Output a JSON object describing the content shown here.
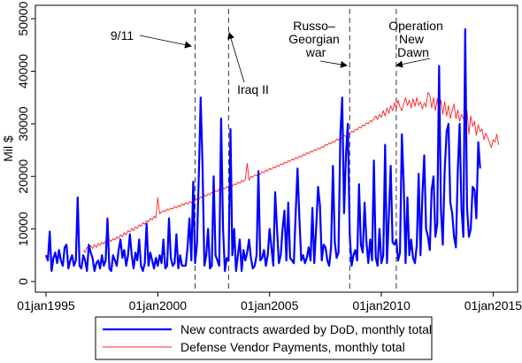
{
  "chart_data": {
    "type": "line",
    "title": "",
    "xlabel": "",
    "ylabel": "Mil $",
    "xlim": [
      "1995-01",
      "2015-01"
    ],
    "ylim": [
      0,
      50000
    ],
    "x_ticks": [
      "01jan1995",
      "01jan2000",
      "01jan2005",
      "01jan2010",
      "01jan2015"
    ],
    "y_ticks": [
      "0",
      "10000",
      "20000",
      "30000",
      "40000",
      "50000"
    ],
    "grid": false,
    "legend_position": "bottom",
    "colors": {
      "dod": "#0000ff",
      "payments": "#ff2020",
      "frame": "#000000"
    },
    "events": [
      {
        "date": "2001-09",
        "label": "9/11"
      },
      {
        "date": "2003-03",
        "label": "Iraq II"
      },
      {
        "date": "2008-08",
        "label": "Russo– Georgian war"
      },
      {
        "date": "2010-09",
        "label": "Operation New Dawn"
      }
    ],
    "series": [
      {
        "name": "New contracts awarded by DoD, monthly total",
        "start": "1995-01",
        "values": [
          5000,
          4000,
          9500,
          2000,
          4500,
          5500,
          3500,
          6000,
          4000,
          3000,
          6500,
          7000,
          2500,
          4000,
          5000,
          3000,
          4000,
          16000,
          3000,
          2500,
          5000,
          4000,
          2000,
          7000,
          5500,
          4500,
          2000,
          3500,
          4000,
          2500,
          5000,
          3000,
          4000,
          12000,
          2500,
          2000,
          5000,
          4000,
          3000,
          6000,
          8000,
          4500,
          6000,
          3000,
          5000,
          9000,
          5000,
          2500,
          5500,
          4000,
          8000,
          3000,
          2000,
          3500,
          11000,
          3000,
          5500,
          4000,
          2500,
          4500,
          3000,
          5000,
          3500,
          8000,
          2500,
          3000,
          12000,
          4500,
          3000,
          3500,
          9000,
          2500,
          5000,
          3000,
          3000,
          3000,
          6500,
          12000,
          4000,
          19000,
          3500,
          7000,
          20000,
          35000,
          22000,
          3000,
          5000,
          10000,
          2500,
          3000,
          20000,
          5000,
          4000,
          3000,
          31000,
          10000,
          2000,
          4500,
          4000,
          29000,
          5000,
          10000,
          2000,
          5000,
          8000,
          2000,
          6000,
          4000,
          5500,
          8000,
          4500,
          2500,
          3000,
          5000,
          21000,
          4000,
          4500,
          6000,
          3000,
          5000,
          10000,
          6500,
          3000,
          17000,
          10000,
          3500,
          5000,
          10000,
          13500,
          4000,
          15000,
          4500,
          4000,
          3500,
          13000,
          21500,
          12000,
          4000,
          5000,
          3500,
          4500,
          6500,
          4000,
          14000,
          3500,
          10000,
          18000,
          14500,
          4000,
          7000,
          6500,
          4000,
          3000,
          6500,
          22000,
          7500,
          4500,
          5500,
          28000,
          35000,
          13000,
          24000,
          30000,
          9000,
          3000,
          5000,
          6000,
          4000,
          18500,
          7000,
          5500,
          15000,
          7500,
          3500,
          8000,
          4000,
          23000,
          4500,
          3000,
          10000,
          3500,
          5000,
          26000,
          3500,
          12500,
          22000,
          7500,
          7000,
          8000,
          4000,
          5500,
          28000,
          18500,
          3500,
          16000,
          5000,
          8000,
          4500,
          3500,
          7000,
          20500,
          5000,
          16500,
          24000,
          10000,
          8500,
          6000,
          17500,
          20000,
          8500,
          11000,
          41000,
          13500,
          7000,
          21000,
          28500,
          30000,
          15000,
          13000,
          8500,
          6500,
          21000,
          30000,
          14000,
          8500,
          48000,
          14000,
          8500,
          10000,
          18000,
          17500,
          12000,
          26500,
          21500
        ]
      },
      {
        "name": "Defense Vendor Payments, monthly total",
        "start": "1996-09",
        "values": [
          6000,
          5500,
          6500,
          6200,
          6800,
          6300,
          7000,
          6500,
          7200,
          6900,
          7500,
          7100,
          7800,
          7400,
          8000,
          7600,
          8200,
          7900,
          8500,
          8200,
          8900,
          8500,
          9300,
          8900,
          9700,
          9400,
          10100,
          9700,
          10400,
          10100,
          10800,
          10500,
          11200,
          10900,
          11600,
          11300,
          12000,
          11700,
          12400,
          12100,
          16000,
          12900,
          13200,
          13500,
          13300,
          13800,
          13600,
          14000,
          13800,
          14300,
          14000,
          14500,
          14200,
          14800,
          14500,
          15000,
          14700,
          15200,
          15000,
          15500,
          15300,
          15800,
          15600,
          16100,
          15900,
          16400,
          16200,
          16700,
          16500,
          17000,
          16800,
          17300,
          17100,
          17600,
          17400,
          17800,
          17600,
          18100,
          17800,
          18300,
          18100,
          18600,
          18400,
          18900,
          18700,
          19200,
          19000,
          19500,
          22500,
          19300,
          20000,
          19800,
          20300,
          20100,
          20600,
          20400,
          20900,
          20700,
          21200,
          21000,
          21500,
          21300,
          21800,
          21600,
          22100,
          21900,
          22400,
          22200,
          22700,
          22500,
          23000,
          22800,
          23300,
          23100,
          23600,
          23400,
          23900,
          23700,
          24200,
          24000,
          24500,
          24300,
          24800,
          24600,
          25100,
          24900,
          25400,
          25200,
          25700,
          25500,
          26100,
          25900,
          26400,
          26200,
          26700,
          26500,
          27100,
          26900,
          27400,
          27200,
          27800,
          27600,
          28200,
          28000,
          28600,
          28400,
          29000,
          28800,
          29400,
          29200,
          29800,
          29600,
          30200,
          30000,
          30600,
          30400,
          31000,
          31500,
          30800,
          31800,
          31200,
          32500,
          31500,
          33000,
          32000,
          33500,
          32500,
          34000,
          32800,
          34500,
          33200,
          32500,
          33800,
          35000,
          33500,
          34500,
          33000,
          34800,
          33300,
          35000,
          33500,
          34200,
          32800,
          34000,
          33200,
          36000,
          35500,
          33000,
          35000,
          32500,
          34800,
          32000,
          34500,
          31800,
          34200,
          31500,
          33500,
          31000,
          32500,
          33800,
          31000,
          32600,
          30500,
          31800,
          31000,
          30500,
          32500,
          28000,
          31500,
          29500,
          30500,
          27800,
          29800,
          28500,
          29000,
          27000,
          28200,
          27500,
          26500,
          25500,
          27000,
          26500,
          28000,
          26000
        ]
      }
    ]
  }
}
